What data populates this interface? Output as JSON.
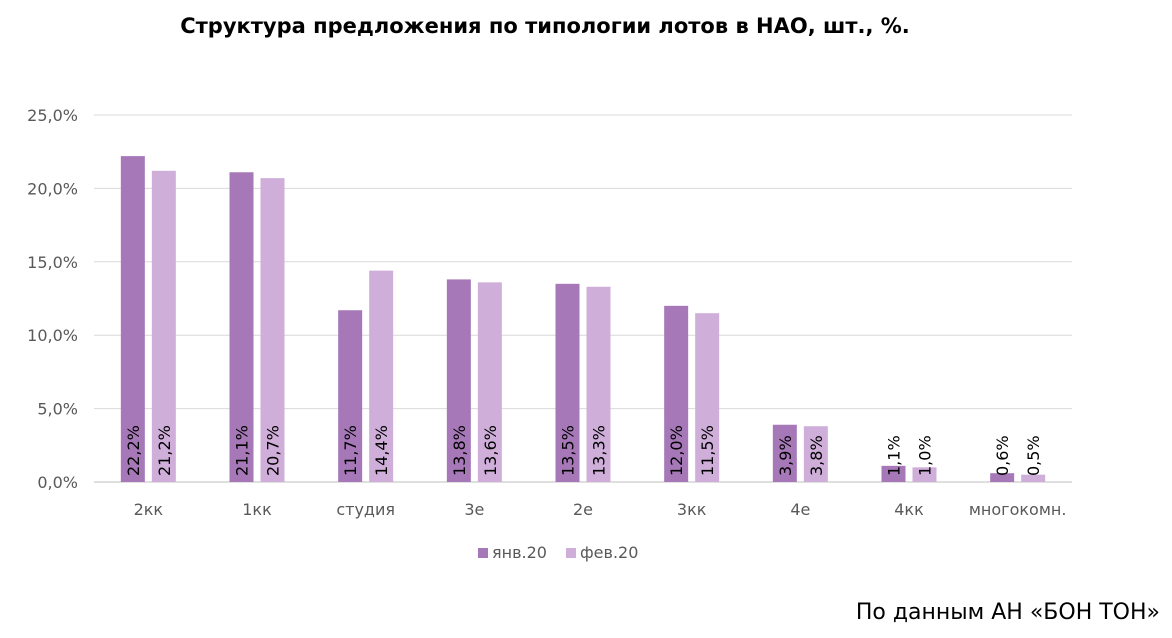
{
  "chart_data": {
    "type": "bar",
    "title": "Структура предложения по типологии лотов в НАО, шт., %.",
    "categories": [
      "2кк",
      "1кк",
      "студия",
      "3е",
      "2е",
      "3кк",
      "4е",
      "4кк",
      "многокомн."
    ],
    "series": [
      {
        "name": "янв.20",
        "color": "#A678B8",
        "values": [
          22.2,
          21.1,
          11.7,
          13.8,
          13.5,
          12.0,
          3.9,
          1.1,
          0.6
        ],
        "labels": [
          "22,2%",
          "21,1%",
          "11,7%",
          "13,8%",
          "13,5%",
          "12,0%",
          "3,9%",
          "1,1%",
          "0,6%"
        ]
      },
      {
        "name": "фев.20",
        "color": "#CFAFD9",
        "values": [
          21.2,
          20.7,
          14.4,
          13.6,
          13.3,
          11.5,
          3.8,
          1.0,
          0.5
        ],
        "labels": [
          "21,2%",
          "20,7%",
          "14,4%",
          "13,6%",
          "13,3%",
          "11,5%",
          "3,8%",
          "1,0%",
          "0,5%"
        ]
      }
    ],
    "y_ticks": [
      "0,0%",
      "5,0%",
      "10,0%",
      "15,0%",
      "20,0%",
      "25,0%"
    ],
    "ylim": [
      0,
      25
    ],
    "grid": true,
    "legend_position": "bottom"
  },
  "source_note": "По данным АН «БОН ТОН»"
}
